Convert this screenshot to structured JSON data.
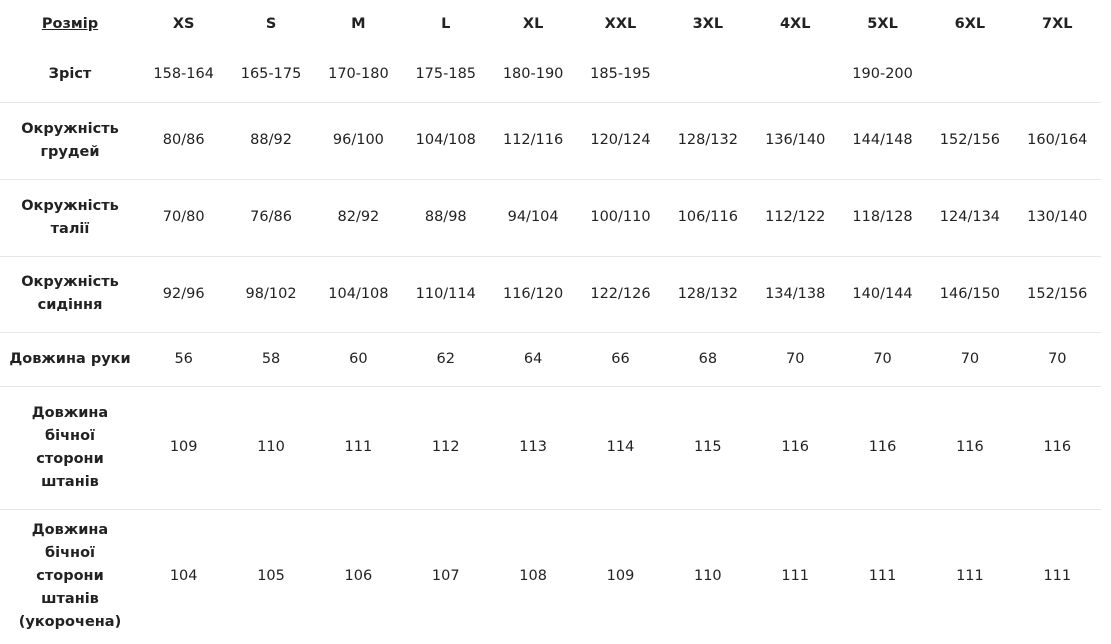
{
  "table": {
    "header_label": "Розмір",
    "sizes": [
      "XS",
      "S",
      "M",
      "L",
      "XL",
      "XXL",
      "3XL",
      "4XL",
      "5XL",
      "6XL",
      "7XL"
    ],
    "rows": [
      {
        "label": [
          "Зріст"
        ],
        "values": [
          "158-164",
          "165-175",
          "170-180",
          "175-185",
          "180-190",
          "185-195"
        ],
        "merged_value": "190-200"
      },
      {
        "label": [
          "Окружність",
          "грудей"
        ],
        "values": [
          "80/86",
          "88/92",
          "96/100",
          "104/108",
          "112/116",
          "120/124",
          "128/132",
          "136/140",
          "144/148",
          "152/156",
          "160/164"
        ]
      },
      {
        "label": [
          "Окружність",
          "талії"
        ],
        "values": [
          "70/80",
          "76/86",
          "82/92",
          "88/98",
          "94/104",
          "100/110",
          "106/116",
          "112/122",
          "118/128",
          "124/134",
          "130/140"
        ]
      },
      {
        "label": [
          "Окружність",
          "сидіння"
        ],
        "values": [
          "92/96",
          "98/102",
          "104/108",
          "110/114",
          "116/120",
          "122/126",
          "128/132",
          "134/138",
          "140/144",
          "146/150",
          "152/156"
        ]
      },
      {
        "label": [
          "Довжина руки"
        ],
        "values": [
          "56",
          "58",
          "60",
          "62",
          "64",
          "66",
          "68",
          "70",
          "70",
          "70",
          "70"
        ]
      },
      {
        "label": [
          "Довжина",
          "бічної",
          "сторони",
          "штанів"
        ],
        "values": [
          "109",
          "110",
          "111",
          "112",
          "113",
          "114",
          "115",
          "116",
          "116",
          "116",
          "116"
        ]
      },
      {
        "label": [
          "Довжина",
          "бічної",
          "сторони",
          "штанів",
          "(укорочена)"
        ],
        "values": [
          "104",
          "105",
          "106",
          "107",
          "108",
          "109",
          "110",
          "111",
          "111",
          "111",
          "111"
        ]
      }
    ]
  }
}
